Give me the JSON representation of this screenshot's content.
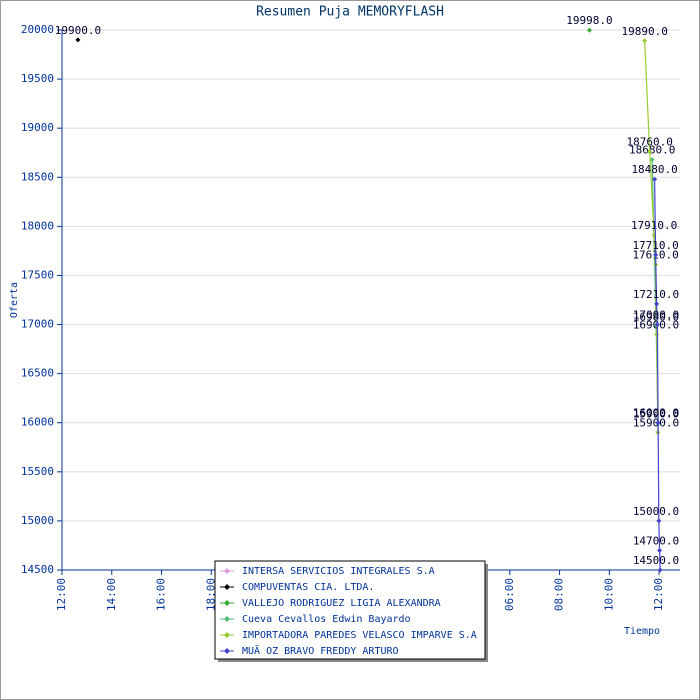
{
  "chart_data": {
    "type": "line",
    "title": "Resumen Puja MEMORYFLASH",
    "x_label": "Tiempo",
    "y_label": "Oferta",
    "xlim": [
      0,
      24.84
    ],
    "xticks": [
      {
        "value": 0,
        "label": "12:00"
      },
      {
        "value": 2,
        "label": "14:00"
      },
      {
        "value": 4,
        "label": "16:00"
      },
      {
        "value": 6,
        "label": "18:00"
      },
      {
        "value": 8,
        "label": "20:00"
      },
      {
        "value": 10,
        "label": "22:00"
      },
      {
        "value": 12,
        "label": "00:00"
      },
      {
        "value": 14,
        "label": "02:00"
      },
      {
        "value": 16,
        "label": "04:00"
      },
      {
        "value": 18,
        "label": "06:00"
      },
      {
        "value": 20,
        "label": "08:00"
      },
      {
        "value": 22,
        "label": "10:00"
      },
      {
        "value": 24,
        "label": "12:00"
      }
    ],
    "ylim": [
      14500,
      20000
    ],
    "yticks": [
      14500,
      15000,
      15500,
      16000,
      16500,
      17000,
      17500,
      18000,
      18500,
      19000,
      19500,
      20000
    ],
    "grid": true,
    "series": [
      {
        "name": "INTERSA SERVICIOS INTEGRALES S.A",
        "color": "#dd99dd",
        "x": [
          23.97
        ],
        "values": [
          16000
        ],
        "value_labels": [
          "16000.0"
        ]
      },
      {
        "name": "COMPUVENTAS CIA. LTDA.",
        "color": "#000000",
        "x": [
          0.64
        ],
        "values": [
          19900
        ],
        "value_labels": [
          "19900.0"
        ]
      },
      {
        "name": "VALLEJO RODRIGUEZ LIGIA ALEXANDRA",
        "color": "#33aa33",
        "x": [
          21.2
        ],
        "values": [
          19998
        ],
        "value_labels": [
          "19998.0"
        ]
      },
      {
        "name": "Cueva Cevallos Edwin Bayardo",
        "color": "#55bb77",
        "x": [
          23.72,
          23.88,
          23.96
        ],
        "values": [
          18680,
          16980,
          15990
        ],
        "value_labels": [
          "18680.0",
          "16980.0",
          "15990.0"
        ]
      },
      {
        "name": "IMPORTADORA PAREDES VELASCO IMPARVE S.A",
        "color": "#99cc33",
        "x": [
          23.42,
          23.62,
          23.8,
          23.86,
          23.9,
          23.95
        ],
        "values": [
          19890,
          18760,
          17910,
          17610,
          16900,
          15900
        ],
        "value_labels": [
          "19890.0",
          "18760.0",
          "17910.0",
          "17610.0",
          "16900.0",
          "15900.0"
        ]
      },
      {
        "name": "MUÃ OZ BRAVO FREDDY ARTURO",
        "color": "#4444cc",
        "x": [
          23.82,
          23.86,
          23.9,
          23.93,
          23.96,
          23.99,
          24.02,
          24.04
        ],
        "values": [
          18480,
          17710,
          17210,
          17000,
          16000,
          15000,
          14700,
          14500
        ],
        "value_labels": [
          "18480.0",
          "17710.0",
          "17210.0",
          "17000.0",
          "16000.0",
          "15000.0",
          "14700.0",
          "14500.0"
        ]
      }
    ]
  }
}
